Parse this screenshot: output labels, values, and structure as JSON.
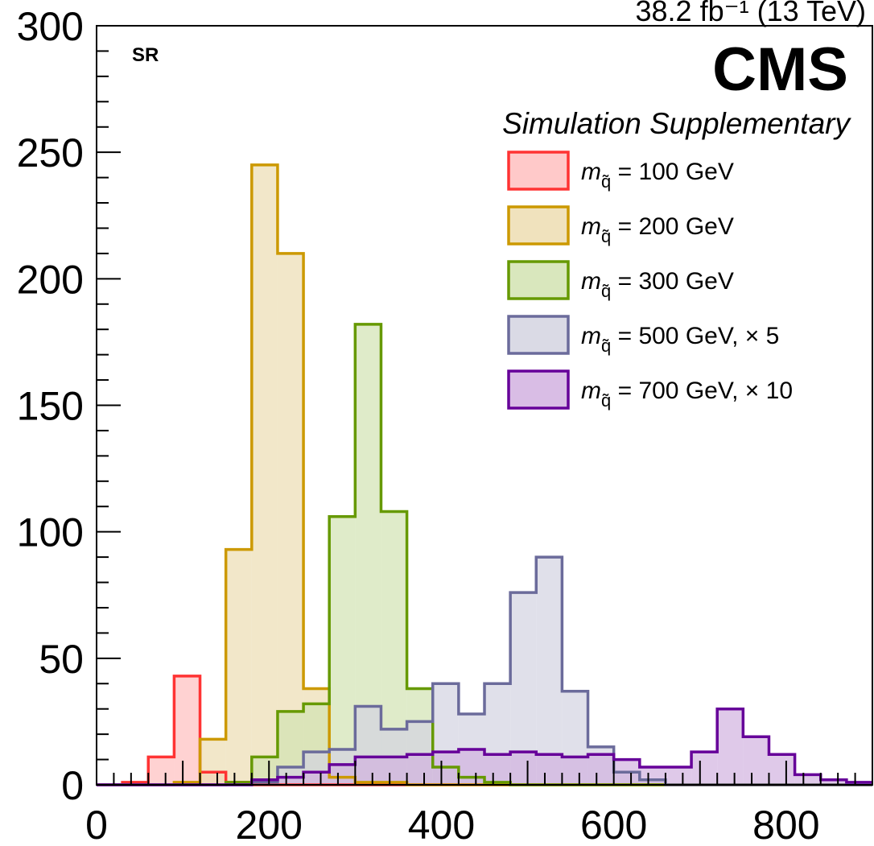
{
  "header": {
    "lumi_label": "38.2 fb⁻¹ (13 TeV)",
    "experiment": "CMS",
    "status": "Simulation Supplementary",
    "region": "SR"
  },
  "chart_data": {
    "type": "histogram",
    "xlabel": "",
    "ylabel": "",
    "xlim": [
      0,
      900
    ],
    "ylim": [
      0,
      300
    ],
    "x_ticks": [
      0,
      200,
      400,
      600,
      800
    ],
    "y_ticks": [
      0,
      50,
      100,
      150,
      200,
      250,
      300
    ],
    "grid": false,
    "legend_position": "top-right",
    "bin_edges": [
      0,
      30,
      60,
      90,
      120,
      150,
      180,
      210,
      240,
      270,
      300,
      330,
      360,
      390,
      420,
      450,
      480,
      510,
      540,
      570,
      600,
      630,
      660,
      690,
      720,
      750,
      780,
      810,
      840,
      870,
      900
    ],
    "series": [
      {
        "label_mass": "m",
        "label_sub": "q̃",
        "label_rest": " = 100 GeV",
        "color": "#ff3333",
        "fill": "#ffbfbf",
        "values": [
          0,
          1,
          11,
          43,
          5,
          1,
          0,
          0,
          0,
          0,
          0,
          0,
          0,
          0,
          0,
          0,
          0,
          0,
          0,
          0,
          0,
          0,
          0,
          0,
          0,
          0,
          0,
          0,
          0,
          0
        ]
      },
      {
        "label_mass": "m",
        "label_sub": "q̃",
        "label_rest": " = 200 GeV",
        "color": "#cc9900",
        "fill": "#edddb2",
        "values": [
          0,
          0,
          0,
          1,
          18,
          93,
          245,
          210,
          38,
          3,
          1,
          1,
          0,
          0,
          0,
          0,
          0,
          0,
          0,
          0,
          0,
          0,
          0,
          0,
          0,
          0,
          0,
          0,
          0,
          0
        ]
      },
      {
        "label_mass": "m",
        "label_sub": "q̃",
        "label_rest": " = 300 GeV",
        "color": "#669900",
        "fill": "#d2e3b2",
        "values": [
          0,
          0,
          0,
          0,
          0,
          1,
          11,
          29,
          32,
          106,
          182,
          108,
          38,
          7,
          3,
          1,
          0,
          0,
          0,
          0,
          0,
          0,
          0,
          0,
          0,
          0,
          0,
          0,
          0,
          0
        ]
      },
      {
        "label_mass": "m",
        "label_sub": "q̃",
        "label_rest": " = 500 GeV, × 5",
        "color": "#6b6b9b",
        "fill": "#d3d3e1",
        "values": [
          0,
          0,
          0,
          0,
          0,
          0,
          1,
          7,
          13,
          14,
          31,
          22,
          25,
          40,
          28,
          40,
          76,
          90,
          37,
          15,
          5,
          2,
          0,
          0,
          0,
          0,
          0,
          0,
          0,
          0
        ]
      },
      {
        "label_mass": "m",
        "label_sub": "q̃",
        "label_rest": " = 700 GeV, × 10",
        "color": "#660099",
        "fill": "#d2b2e0",
        "values": [
          0,
          0,
          0,
          0,
          0,
          0,
          2,
          3,
          5,
          8,
          11,
          11,
          12,
          13,
          14,
          12,
          13,
          12,
          11,
          12,
          10,
          7,
          7,
          13,
          30,
          19,
          12,
          4,
          2,
          1
        ]
      }
    ]
  }
}
